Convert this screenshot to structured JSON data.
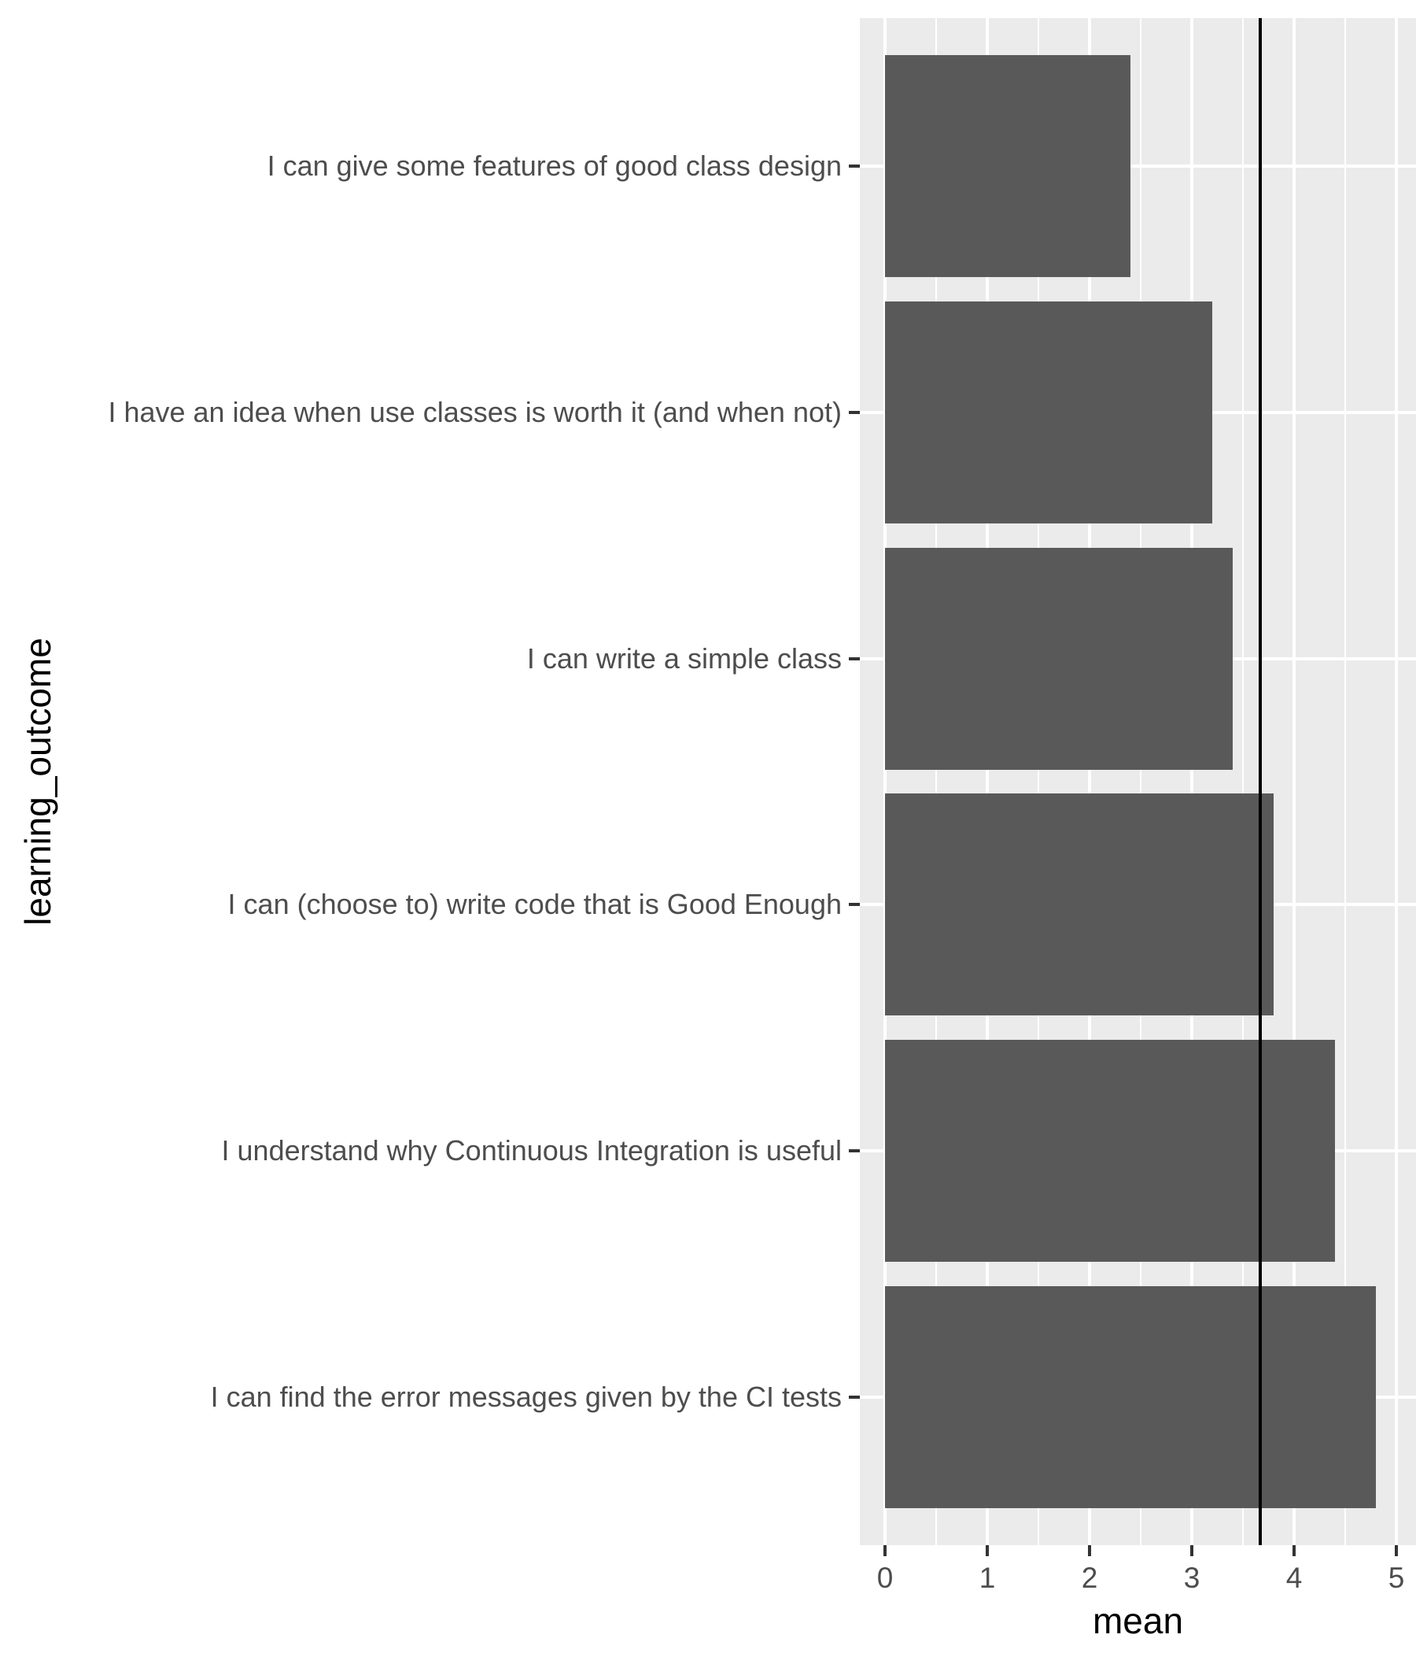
{
  "chart_data": {
    "type": "bar",
    "orientation": "horizontal",
    "title": "",
    "xlabel": "mean",
    "ylabel": "learning_outcome",
    "categories": [
      "I can give some features of good class design",
      "I have an idea when use classes is worth it (and when not)",
      "I can write a simple class",
      "I can (choose to) write code that is Good Enough",
      "I understand why Continuous Integration is useful",
      "I can find the error messages given by the CI tests"
    ],
    "values": [
      2.4,
      3.2,
      3.4,
      3.8,
      4.4,
      4.8
    ],
    "xlim": [
      0,
      5
    ],
    "x_ticks": [
      "0",
      "1",
      "2",
      "3",
      "4",
      "5"
    ],
    "x_minor_ticks": [
      0.5,
      1.5,
      2.5,
      3.5,
      4.5
    ],
    "reference_line": {
      "value": 3.667,
      "orientation": "vertical",
      "color": "#000000"
    },
    "grid": true,
    "legend": "none",
    "colors": {
      "bar": "#595959",
      "panel_background": "#EBEBEB",
      "gridline": "#FFFFFF",
      "axis_text": "#4D4D4D",
      "axis_title": "#000000",
      "tick_mark": "#333333",
      "reference_line": "#000000"
    }
  }
}
